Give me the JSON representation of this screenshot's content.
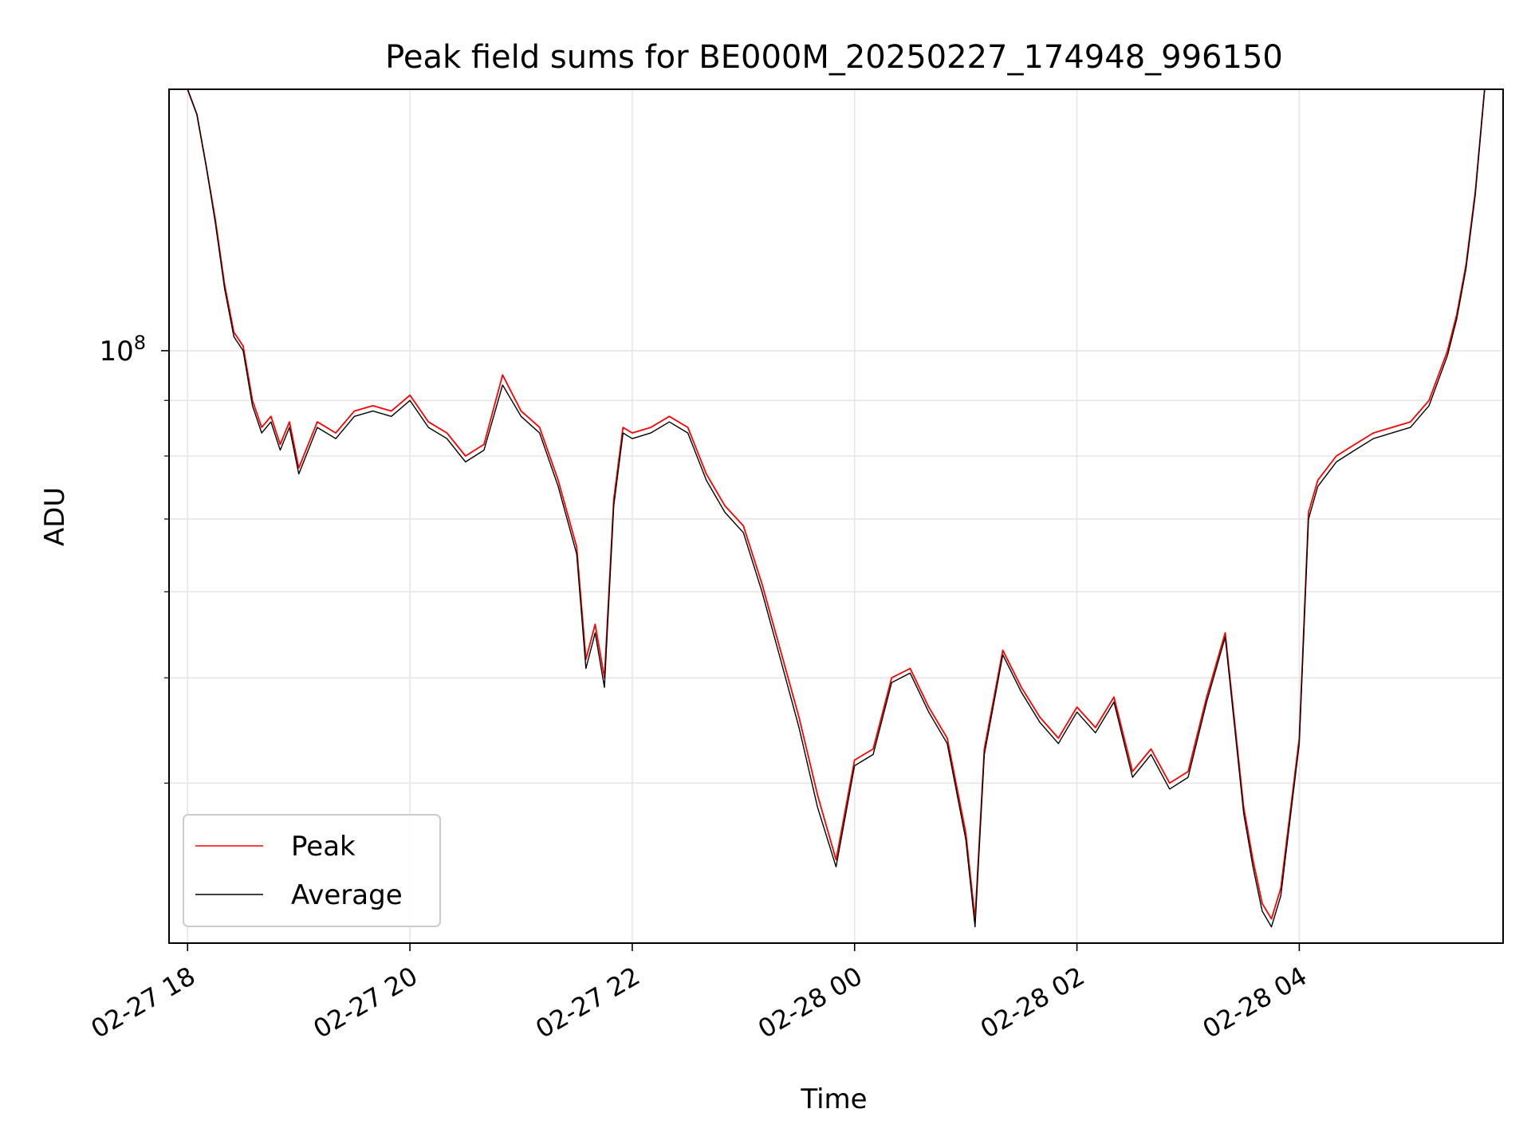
{
  "chart_data": {
    "type": "line",
    "title": "Peak field sums for BE000M_20250227_174948_996150",
    "xlabel": "Time",
    "ylabel": "ADU",
    "yscale": "log",
    "ytick_label": {
      "base": "10",
      "exp": "8",
      "value": 100000000
    },
    "xlim": [
      "02-27 17:50",
      "02-28 05:50"
    ],
    "ylim": [
      28500000,
      174000000
    ],
    "x_ticks": [
      {
        "t": "02-27 18:00",
        "label": "02-27 18"
      },
      {
        "t": "02-27 20:00",
        "label": "02-27 20"
      },
      {
        "t": "02-27 22:00",
        "label": "02-27 22"
      },
      {
        "t": "02-28 00:00",
        "label": "02-28 00"
      },
      {
        "t": "02-28 02:00",
        "label": "02-28 02"
      },
      {
        "t": "02-28 04:00",
        "label": "02-28 04"
      }
    ],
    "y_minor_gridlines": [
      40000000,
      50000000,
      60000000,
      70000000,
      80000000,
      90000000,
      200000000
    ],
    "grid": true,
    "legend_position": "lower-left",
    "x": [
      "02-27 17:50",
      "02-27 17:55",
      "02-27 18:00",
      "02-27 18:05",
      "02-27 18:10",
      "02-27 18:15",
      "02-27 18:20",
      "02-27 18:25",
      "02-27 18:30",
      "02-27 18:35",
      "02-27 18:40",
      "02-27 18:45",
      "02-27 18:50",
      "02-27 18:55",
      "02-27 19:00",
      "02-27 19:10",
      "02-27 19:20",
      "02-27 19:30",
      "02-27 19:40",
      "02-27 19:50",
      "02-27 20:00",
      "02-27 20:10",
      "02-27 20:20",
      "02-27 20:30",
      "02-27 20:40",
      "02-27 20:50",
      "02-27 21:00",
      "02-27 21:10",
      "02-27 21:20",
      "02-27 21:30",
      "02-27 21:35",
      "02-27 21:40",
      "02-27 21:45",
      "02-27 21:50",
      "02-27 21:55",
      "02-27 22:00",
      "02-27 22:10",
      "02-27 22:20",
      "02-27 22:30",
      "02-27 22:40",
      "02-27 22:50",
      "02-27 23:00",
      "02-27 23:10",
      "02-27 23:20",
      "02-27 23:30",
      "02-27 23:40",
      "02-27 23:50",
      "02-28 00:00",
      "02-28 00:10",
      "02-28 00:20",
      "02-28 00:30",
      "02-28 00:40",
      "02-28 00:50",
      "02-28 01:00",
      "02-28 01:05",
      "02-28 01:10",
      "02-28 01:20",
      "02-28 01:30",
      "02-28 01:40",
      "02-28 01:50",
      "02-28 02:00",
      "02-28 02:10",
      "02-28 02:20",
      "02-28 02:30",
      "02-28 02:40",
      "02-28 02:50",
      "02-28 03:00",
      "02-28 03:10",
      "02-28 03:20",
      "02-28 03:30",
      "02-28 03:35",
      "02-28 03:40",
      "02-28 03:45",
      "02-28 03:50",
      "02-28 04:00",
      "02-28 04:05",
      "02-28 04:10",
      "02-28 04:20",
      "02-28 04:30",
      "02-28 04:40",
      "02-28 04:50",
      "02-28 05:00",
      "02-28 05:10",
      "02-28 05:20",
      "02-28 05:25",
      "02-28 05:30",
      "02-28 05:35",
      "02-28 05:40",
      "02-28 05:45"
    ],
    "series": [
      {
        "name": "Peak",
        "color": "#ff0000",
        "values": [
          174000000,
          174000000,
          174000000,
          165000000,
          148000000,
          132000000,
          115000000,
          104000000,
          101000000,
          90000000,
          85000000,
          87000000,
          82000000,
          86000000,
          78000000,
          86000000,
          84000000,
          88000000,
          89000000,
          88000000,
          91000000,
          86000000,
          84000000,
          80000000,
          82000000,
          95000000,
          88000000,
          85000000,
          76000000,
          66000000,
          52000000,
          56000000,
          50000000,
          73000000,
          85000000,
          84000000,
          85000000,
          87000000,
          85000000,
          77000000,
          72000000,
          69000000,
          61000000,
          53000000,
          46000000,
          39000000,
          34000000,
          42000000,
          43000000,
          50000000,
          51000000,
          47000000,
          44000000,
          36000000,
          30000000,
          43000000,
          53000000,
          49000000,
          46000000,
          44000000,
          47000000,
          45000000,
          48000000,
          41000000,
          43000000,
          40000000,
          41000000,
          48000000,
          55000000,
          38000000,
          34000000,
          31000000,
          30000000,
          32000000,
          44000000,
          71000000,
          76000000,
          80000000,
          82000000,
          84000000,
          85000000,
          86000000,
          90000000,
          100000000,
          108000000,
          120000000,
          140000000,
          174000000,
          174000000
        ]
      },
      {
        "name": "Average",
        "color": "#000000",
        "values": [
          174000000,
          174000000,
          174000000,
          165000000,
          148000000,
          131000000,
          114000000,
          103000000,
          100000000,
          89000000,
          84000000,
          86000000,
          81000000,
          85000000,
          77000000,
          85000000,
          83000000,
          87000000,
          88000000,
          87000000,
          90000000,
          85000000,
          83000000,
          79000000,
          81000000,
          93000000,
          87000000,
          84000000,
          75000000,
          65000000,
          51000000,
          55000000,
          49000000,
          72000000,
          84000000,
          83000000,
          84000000,
          86000000,
          84000000,
          76000000,
          71000000,
          68000000,
          60000000,
          52000000,
          45000000,
          38000000,
          33500000,
          41500000,
          42500000,
          49500000,
          50500000,
          46500000,
          43500000,
          35500000,
          29500000,
          42500000,
          52500000,
          48500000,
          45500000,
          43500000,
          46500000,
          44500000,
          47500000,
          40500000,
          42500000,
          39500000,
          40500000,
          47500000,
          54500000,
          37500000,
          33500000,
          30500000,
          29500000,
          31500000,
          43500000,
          70000000,
          75000000,
          79000000,
          81000000,
          83000000,
          84000000,
          85000000,
          89000000,
          99000000,
          107000000,
          119000000,
          139000000,
          174000000,
          174000000
        ]
      }
    ]
  }
}
